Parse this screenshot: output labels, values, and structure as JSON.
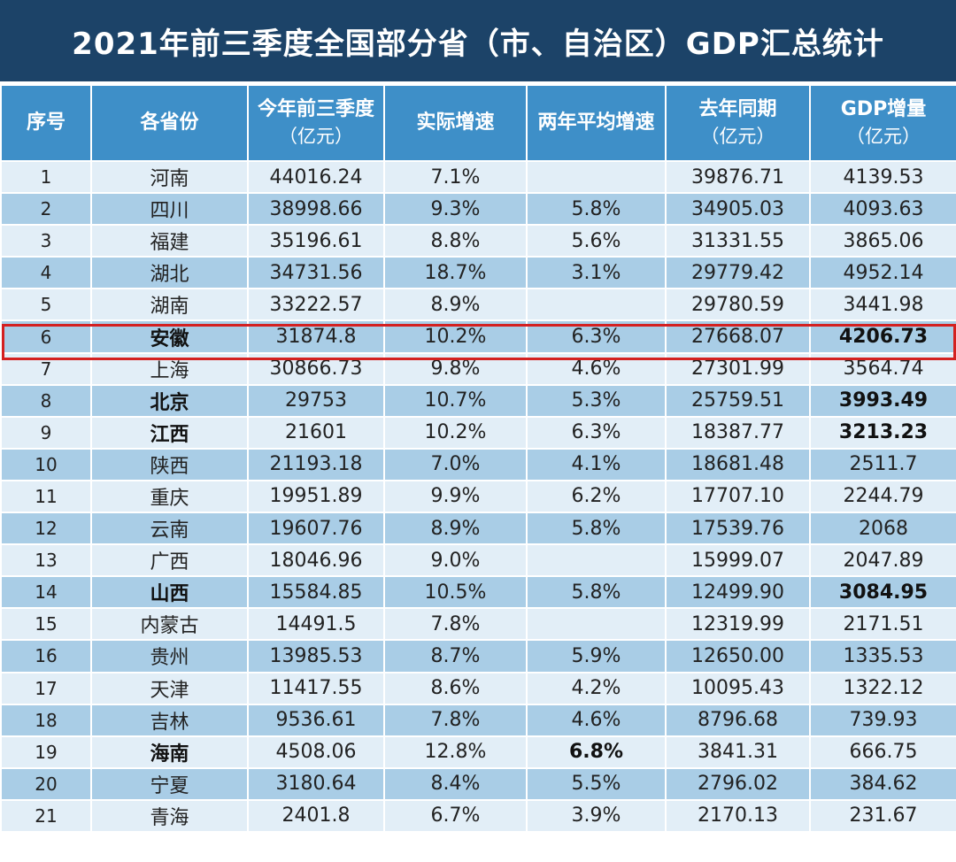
{
  "title": "2021年前三季度全国部分省（市、自治区）GDP汇总统计",
  "columns": [
    {
      "label": "序号",
      "sub": ""
    },
    {
      "label": "各省份",
      "sub": ""
    },
    {
      "label": "今年前三季度",
      "sub": "（亿元）"
    },
    {
      "label": "实际增速",
      "sub": ""
    },
    {
      "label": "两年平均增速",
      "sub": ""
    },
    {
      "label": "去年同期",
      "sub": "（亿元）"
    },
    {
      "label": "GDP增量",
      "sub": "（亿元）"
    }
  ],
  "rows": [
    {
      "no": "1",
      "province": "河南",
      "gdp": "44016.24",
      "growth": "7.1%",
      "avg2y": "",
      "last_year": "39876.71",
      "increase": "4139.53"
    },
    {
      "no": "2",
      "province": "四川",
      "gdp": "38998.66",
      "growth": "9.3%",
      "avg2y": "5.8%",
      "last_year": "34905.03",
      "increase": "4093.63"
    },
    {
      "no": "3",
      "province": "福建",
      "gdp": "35196.61",
      "growth": "8.8%",
      "avg2y": "5.6%",
      "last_year": "31331.55",
      "increase": "3865.06"
    },
    {
      "no": "4",
      "province": "湖北",
      "gdp": "34731.56",
      "growth": "18.7%",
      "avg2y": "3.1%",
      "last_year": "29779.42",
      "increase": "4952.14"
    },
    {
      "no": "5",
      "province": "湖南",
      "gdp": "33222.57",
      "growth": "8.9%",
      "avg2y": "",
      "last_year": "29780.59",
      "increase": "3441.98"
    },
    {
      "no": "6",
      "province": "安徽",
      "gdp": "31874.8",
      "growth": "10.2%",
      "avg2y": "6.3%",
      "last_year": "27668.07",
      "increase": "4206.73"
    },
    {
      "no": "7",
      "province": "上海",
      "gdp": "30866.73",
      "growth": "9.8%",
      "avg2y": "4.6%",
      "last_year": "27301.99",
      "increase": "3564.74"
    },
    {
      "no": "8",
      "province": "北京",
      "gdp": "29753",
      "growth": "10.7%",
      "avg2y": "5.3%",
      "last_year": "25759.51",
      "increase": "3993.49"
    },
    {
      "no": "9",
      "province": "江西",
      "gdp": "21601",
      "growth": "10.2%",
      "avg2y": "6.3%",
      "last_year": "18387.77",
      "increase": "3213.23"
    },
    {
      "no": "10",
      "province": "陕西",
      "gdp": "21193.18",
      "growth": "7.0%",
      "avg2y": "4.1%",
      "last_year": "18681.48",
      "increase": "2511.7"
    },
    {
      "no": "11",
      "province": "重庆",
      "gdp": "19951.89",
      "growth": "9.9%",
      "avg2y": "6.2%",
      "last_year": "17707.10",
      "increase": "2244.79"
    },
    {
      "no": "12",
      "province": "云南",
      "gdp": "19607.76",
      "growth": "8.9%",
      "avg2y": "5.8%",
      "last_year": "17539.76",
      "increase": "2068"
    },
    {
      "no": "13",
      "province": "广西",
      "gdp": "18046.96",
      "growth": "9.0%",
      "avg2y": "",
      "last_year": "15999.07",
      "increase": "2047.89"
    },
    {
      "no": "14",
      "province": "山西",
      "gdp": "15584.85",
      "growth": "10.5%",
      "avg2y": "5.8%",
      "last_year": "12499.90",
      "increase": "3084.95"
    },
    {
      "no": "15",
      "province": "内蒙古",
      "gdp": "14491.5",
      "growth": "7.8%",
      "avg2y": "",
      "last_year": "12319.99",
      "increase": "2171.51"
    },
    {
      "no": "16",
      "province": "贵州",
      "gdp": "13985.53",
      "growth": "8.7%",
      "avg2y": "5.9%",
      "last_year": "12650.00",
      "increase": "1335.53"
    },
    {
      "no": "17",
      "province": "天津",
      "gdp": "11417.55",
      "growth": "8.6%",
      "avg2y": "4.2%",
      "last_year": "10095.43",
      "increase": "1322.12"
    },
    {
      "no": "18",
      "province": "吉林",
      "gdp": "9536.61",
      "growth": "7.8%",
      "avg2y": "4.6%",
      "last_year": "8796.68",
      "increase": "739.93"
    },
    {
      "no": "19",
      "province": "海南",
      "gdp": "4508.06",
      "growth": "12.8%",
      "avg2y": "6.8%",
      "last_year": "3841.31",
      "increase": "666.75"
    },
    {
      "no": "20",
      "province": "宁夏",
      "gdp": "3180.64",
      "growth": "8.4%",
      "avg2y": "5.5%",
      "last_year": "2796.02",
      "increase": "384.62"
    },
    {
      "no": "21",
      "province": "青海",
      "gdp": "2401.8",
      "growth": "6.7%",
      "avg2y": "3.9%",
      "last_year": "2170.13",
      "increase": "231.67"
    }
  ],
  "colors": {
    "title_bg": "#1c4368",
    "header_bg": "#3e8fc8",
    "row_light": "#e2eef7",
    "row_dark": "#a9cde6",
    "highlight_border": "#d42020"
  }
}
